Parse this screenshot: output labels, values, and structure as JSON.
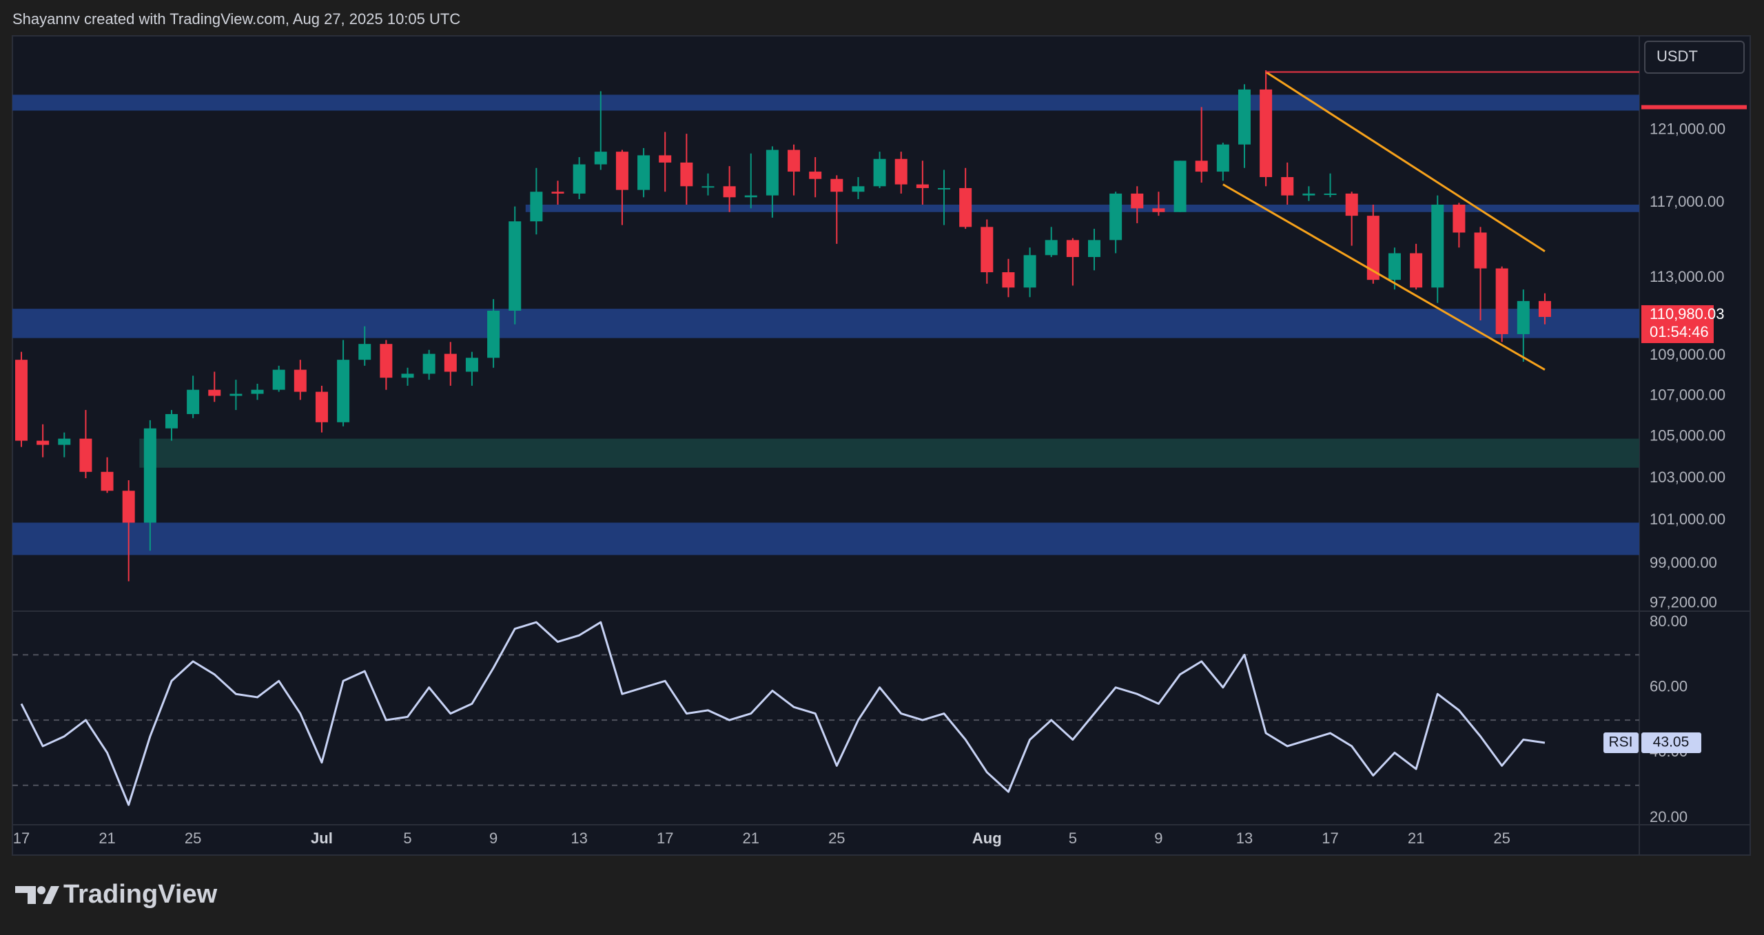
{
  "header": "Shayannv created with TradingView.com, Aug 27, 2025 10:05 UTC",
  "footer": "TradingView",
  "chart_data": [
    {
      "type": "candlestick",
      "currency": "USDT",
      "x": [
        "Jun 17",
        "Jun 18",
        "Jun 19",
        "Jun 20",
        "Jun 21",
        "Jun 22",
        "Jun 23",
        "Jun 24",
        "Jun 25",
        "Jun 26",
        "Jun 27",
        "Jun 28",
        "Jun 29",
        "Jun 30",
        "Jul 1",
        "Jul 2",
        "Jul 3",
        "Jul 4",
        "Jul 5",
        "Jul 6",
        "Jul 7",
        "Jul 8",
        "Jul 9",
        "Jul 10",
        "Jul 11",
        "Jul 12",
        "Jul 13",
        "Jul 14",
        "Jul 15",
        "Jul 16",
        "Jul 17",
        "Jul 18",
        "Jul 19",
        "Jul 20",
        "Jul 21",
        "Jul 22",
        "Jul 23",
        "Jul 24",
        "Jul 25",
        "Jul 26",
        "Jul 27",
        "Jul 28",
        "Jul 29",
        "Jul 30",
        "Jul 31",
        "Aug 1",
        "Aug 2",
        "Aug 3",
        "Aug 4",
        "Aug 5",
        "Aug 6",
        "Aug 7",
        "Aug 8",
        "Aug 9",
        "Aug 10",
        "Aug 11",
        "Aug 12",
        "Aug 13",
        "Aug 14",
        "Aug 15",
        "Aug 16",
        "Aug 17",
        "Aug 18",
        "Aug 19",
        "Aug 20",
        "Aug 21",
        "Aug 22",
        "Aug 23",
        "Aug 24",
        "Aug 25",
        "Aug 26",
        "Aug 27"
      ],
      "open": [
        108800,
        104800,
        104600,
        104900,
        103300,
        102400,
        100900,
        105400,
        106100,
        107300,
        107000,
        107100,
        107300,
        108300,
        107200,
        105700,
        108800,
        109600,
        107900,
        108100,
        109100,
        108200,
        108900,
        111300,
        116000,
        117600,
        117500,
        119100,
        119800,
        117700,
        119600,
        119200,
        117900,
        117900,
        117300,
        117400,
        119900,
        118700,
        118300,
        117600,
        117900,
        119400,
        118000,
        117800,
        117800,
        115700,
        113300,
        112500,
        114200,
        115000,
        114100,
        115000,
        117500,
        116700,
        116500,
        119300,
        118700,
        120200,
        123300,
        118400,
        117400,
        117500,
        117500,
        116300,
        112900,
        114300,
        112500,
        116900,
        115400,
        113500,
        110100,
        111800
      ],
      "high": [
        109200,
        105600,
        105200,
        106300,
        104000,
        102900,
        105800,
        106300,
        108000,
        108200,
        107800,
        107600,
        108500,
        108800,
        107500,
        109800,
        110500,
        109800,
        108400,
        109300,
        109700,
        109200,
        111900,
        116800,
        118900,
        118200,
        119500,
        123200,
        119900,
        120000,
        120900,
        120800,
        118600,
        119000,
        119700,
        120100,
        120200,
        119500,
        118500,
        118400,
        119800,
        119800,
        119300,
        118800,
        118900,
        116100,
        114000,
        114600,
        115700,
        115100,
        115600,
        117600,
        117900,
        117600,
        119300,
        122300,
        120300,
        123600,
        124400,
        119200,
        117900,
        118600,
        117600,
        116900,
        114600,
        114800,
        117400,
        117000,
        115700,
        113600,
        112400,
        112200
      ],
      "low": [
        104500,
        104000,
        104000,
        103000,
        102300,
        98200,
        99600,
        104800,
        105900,
        106700,
        106300,
        106800,
        107200,
        106800,
        105200,
        105500,
        108500,
        107300,
        107500,
        107800,
        107500,
        107500,
        108400,
        110600,
        115300,
        116900,
        117200,
        118800,
        115800,
        117300,
        117600,
        116900,
        117400,
        116500,
        116700,
        116200,
        117400,
        117300,
        114800,
        117200,
        117800,
        117500,
        116900,
        115800,
        115600,
        112700,
        112000,
        112000,
        114100,
        112600,
        113400,
        114300,
        115900,
        116300,
        116500,
        118100,
        118200,
        118900,
        117900,
        116900,
        117100,
        117300,
        114700,
        112700,
        112400,
        112400,
        111700,
        114600,
        110800,
        109700,
        108700,
        110600
      ],
      "close": [
        104800,
        104600,
        104900,
        103300,
        102400,
        100900,
        105400,
        106100,
        107300,
        107000,
        107100,
        107300,
        108300,
        107200,
        105700,
        108800,
        109600,
        107900,
        108100,
        109100,
        108200,
        108900,
        111300,
        116000,
        117600,
        117500,
        119100,
        119800,
        117700,
        119600,
        119200,
        117900,
        117900,
        117300,
        117400,
        119900,
        118700,
        118300,
        117600,
        117900,
        119400,
        118000,
        117800,
        117800,
        115700,
        113300,
        112500,
        114200,
        115000,
        114100,
        115000,
        117500,
        116700,
        116500,
        119300,
        118700,
        120200,
        123300,
        118400,
        117400,
        117500,
        117500,
        116300,
        112900,
        114300,
        112500,
        116900,
        115400,
        113500,
        110100,
        111800,
        110980.03
      ],
      "last_price_label": "110,980.03",
      "countdown": "01:54:46",
      "up_color": "#089981",
      "down_color": "#f23645",
      "log": true,
      "ylim": [
        96850,
        126400
      ],
      "yticks": [
        {
          "value": 121000,
          "label": "121,000.00"
        },
        {
          "value": 117000,
          "label": "117,000.00"
        },
        {
          "value": 113000,
          "label": "113,000.00"
        },
        {
          "value": 109000,
          "label": "109,000.00"
        },
        {
          "value": 107000,
          "label": "107,000.00"
        },
        {
          "value": 105000,
          "label": "105,000.00"
        },
        {
          "value": 103000,
          "label": "103,000.00"
        },
        {
          "value": 101000,
          "label": "101,000.00"
        },
        {
          "value": 99000,
          "label": "99,000.00"
        },
        {
          "value": 97200,
          "label": "97,200.00"
        }
      ],
      "xticks": [
        {
          "value": "Jun 17",
          "label": "17"
        },
        {
          "value": "Jun 21",
          "label": "21"
        },
        {
          "value": "Jun 25",
          "label": "25"
        },
        {
          "value": "Jul 1",
          "label": "Jul"
        },
        {
          "value": "Jul 5",
          "label": "5"
        },
        {
          "value": "Jul 9",
          "label": "9"
        },
        {
          "value": "Jul 13",
          "label": "13"
        },
        {
          "value": "Jul 17",
          "label": "17"
        },
        {
          "value": "Jul 21",
          "label": "21"
        },
        {
          "value": "Jul 25",
          "label": "25"
        },
        {
          "value": "Aug 1",
          "label": "Aug"
        },
        {
          "value": "Aug 5",
          "label": "5"
        },
        {
          "value": "Aug 9",
          "label": "9"
        },
        {
          "value": "Aug 13",
          "label": "13"
        },
        {
          "value": "Aug 17",
          "label": "17"
        },
        {
          "value": "Aug 21",
          "label": "21"
        },
        {
          "value": "Aug 25",
          "label": "25"
        }
      ],
      "grid": false,
      "zones": [
        {
          "high": 123000,
          "low": 122100,
          "color": "#1f3b7a"
        },
        {
          "high": 116900,
          "low": 116500,
          "from": "Jul 11",
          "color": "#1f3b7a"
        },
        {
          "high": 111400,
          "low": 109900,
          "color": "#1f3b7a"
        },
        {
          "high": 104900,
          "low": 103500,
          "from": "Jun 23",
          "color": "#173a3b"
        },
        {
          "high": 100900,
          "low": 99400,
          "color": "#1f3b7a"
        }
      ],
      "trend_lines": [
        {
          "from": "Aug 14",
          "to": "Aug 27",
          "start_price": 124300,
          "end_price": 114400,
          "color": "#f7a21b"
        },
        {
          "from": "Aug 12",
          "to": "Aug 27",
          "start_price": 118000,
          "end_price": 108300,
          "color": "#f7a21b"
        }
      ],
      "horizontal_lines": [
        {
          "from": "Aug 14",
          "price": 124300,
          "color": "#f23645"
        }
      ]
    },
    {
      "type": "line",
      "name": "RSI",
      "color": "#c8d3f5",
      "x": [
        "Jun 17",
        "Jun 18",
        "Jun 19",
        "Jun 20",
        "Jun 21",
        "Jun 22",
        "Jun 23",
        "Jun 24",
        "Jun 25",
        "Jun 26",
        "Jun 27",
        "Jun 28",
        "Jun 29",
        "Jun 30",
        "Jul 1",
        "Jul 2",
        "Jul 3",
        "Jul 4",
        "Jul 5",
        "Jul 6",
        "Jul 7",
        "Jul 8",
        "Jul 9",
        "Jul 10",
        "Jul 11",
        "Jul 12",
        "Jul 13",
        "Jul 14",
        "Jul 15",
        "Jul 16",
        "Jul 17",
        "Jul 18",
        "Jul 19",
        "Jul 20",
        "Jul 21",
        "Jul 22",
        "Jul 23",
        "Jul 24",
        "Jul 25",
        "Jul 26",
        "Jul 27",
        "Jul 28",
        "Jul 29",
        "Jul 30",
        "Jul 31",
        "Aug 1",
        "Aug 2",
        "Aug 3",
        "Aug 4",
        "Aug 5",
        "Aug 6",
        "Aug 7",
        "Aug 8",
        "Aug 9",
        "Aug 10",
        "Aug 11",
        "Aug 12",
        "Aug 13",
        "Aug 14",
        "Aug 15",
        "Aug 16",
        "Aug 17",
        "Aug 18",
        "Aug 19",
        "Aug 20",
        "Aug 21",
        "Aug 22",
        "Aug 23",
        "Aug 24",
        "Aug 25",
        "Aug 26",
        "Aug 27"
      ],
      "values": [
        55,
        42,
        45,
        50,
        40,
        24,
        45,
        62,
        68,
        64,
        58,
        57,
        62,
        52,
        37,
        62,
        65,
        50,
        51,
        60,
        52,
        55,
        66,
        78,
        80,
        74,
        76,
        80,
        58,
        60,
        62,
        52,
        53,
        50,
        52,
        59,
        54,
        52,
        36,
        50,
        60,
        52,
        50,
        52,
        44,
        34,
        28,
        44,
        50,
        44,
        52,
        60,
        58,
        55,
        64,
        68,
        60,
        70,
        46,
        42,
        44,
        46,
        42,
        33,
        40,
        35,
        58,
        53,
        45,
        36,
        44,
        43.05
      ],
      "ylim": [
        17.9,
        83.4
      ],
      "yticks": [
        {
          "value": 80,
          "label": "80.00"
        },
        {
          "value": 60,
          "label": "60.00"
        },
        {
          "value": 40,
          "label": "40.00"
        },
        {
          "value": 20,
          "label": "20.00"
        }
      ],
      "bands": [
        70,
        50,
        30
      ]
    }
  ]
}
